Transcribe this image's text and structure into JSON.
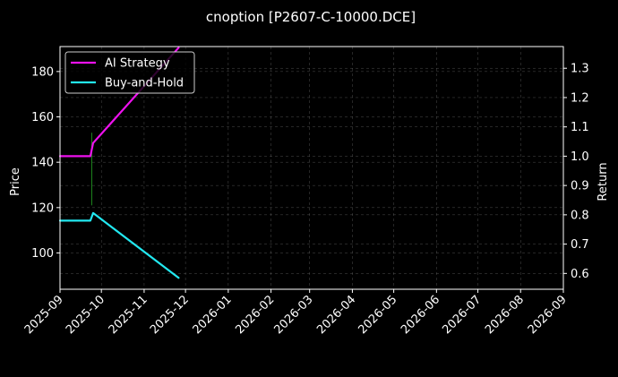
{
  "chart_data": {
    "type": "line",
    "title": "cnoption [P2607-C-10000.DCE]",
    "xlabel": "",
    "ylabel_left": "Price",
    "ylabel_right": "Return",
    "x_ticks": [
      "2025-09",
      "2025-10",
      "2025-11",
      "2025-12",
      "2026-01",
      "2026-02",
      "2026-03",
      "2026-04",
      "2026-05",
      "2026-06",
      "2026-07",
      "2026-08",
      "2026-09"
    ],
    "xlim": [
      "2025-09-01",
      "2026-09-01"
    ],
    "ylim_left": [
      84,
      191
    ],
    "yticks_left": [
      100,
      120,
      140,
      160,
      180
    ],
    "ylim_right": [
      0.546,
      1.374
    ],
    "yticks_right": [
      0.6,
      0.7,
      0.8,
      0.9,
      1.0,
      1.1,
      1.2,
      1.3
    ],
    "grid": true,
    "legend_position": "top-left",
    "series": [
      {
        "name": "AI Strategy",
        "axis": "right",
        "color": "#ee11ee",
        "x": [
          "2025-09-01",
          "2025-09-22",
          "2025-09-23",
          "2025-09-25",
          "2025-11-26"
        ],
        "values": [
          1.0,
          1.0,
          1.0,
          1.045,
          1.37
        ]
      },
      {
        "name": "Buy-and-Hold",
        "axis": "right",
        "color": "#22e8f0",
        "x": [
          "2025-09-01",
          "2025-09-22",
          "2025-09-23",
          "2025-09-25",
          "2025-11-26"
        ],
        "values": [
          0.78,
          0.78,
          0.78,
          0.806,
          0.585
        ]
      }
    ],
    "price_candles": [
      {
        "x": "2025-09-24",
        "high": 153,
        "low": 121,
        "color": "#1f8a1f"
      }
    ]
  }
}
